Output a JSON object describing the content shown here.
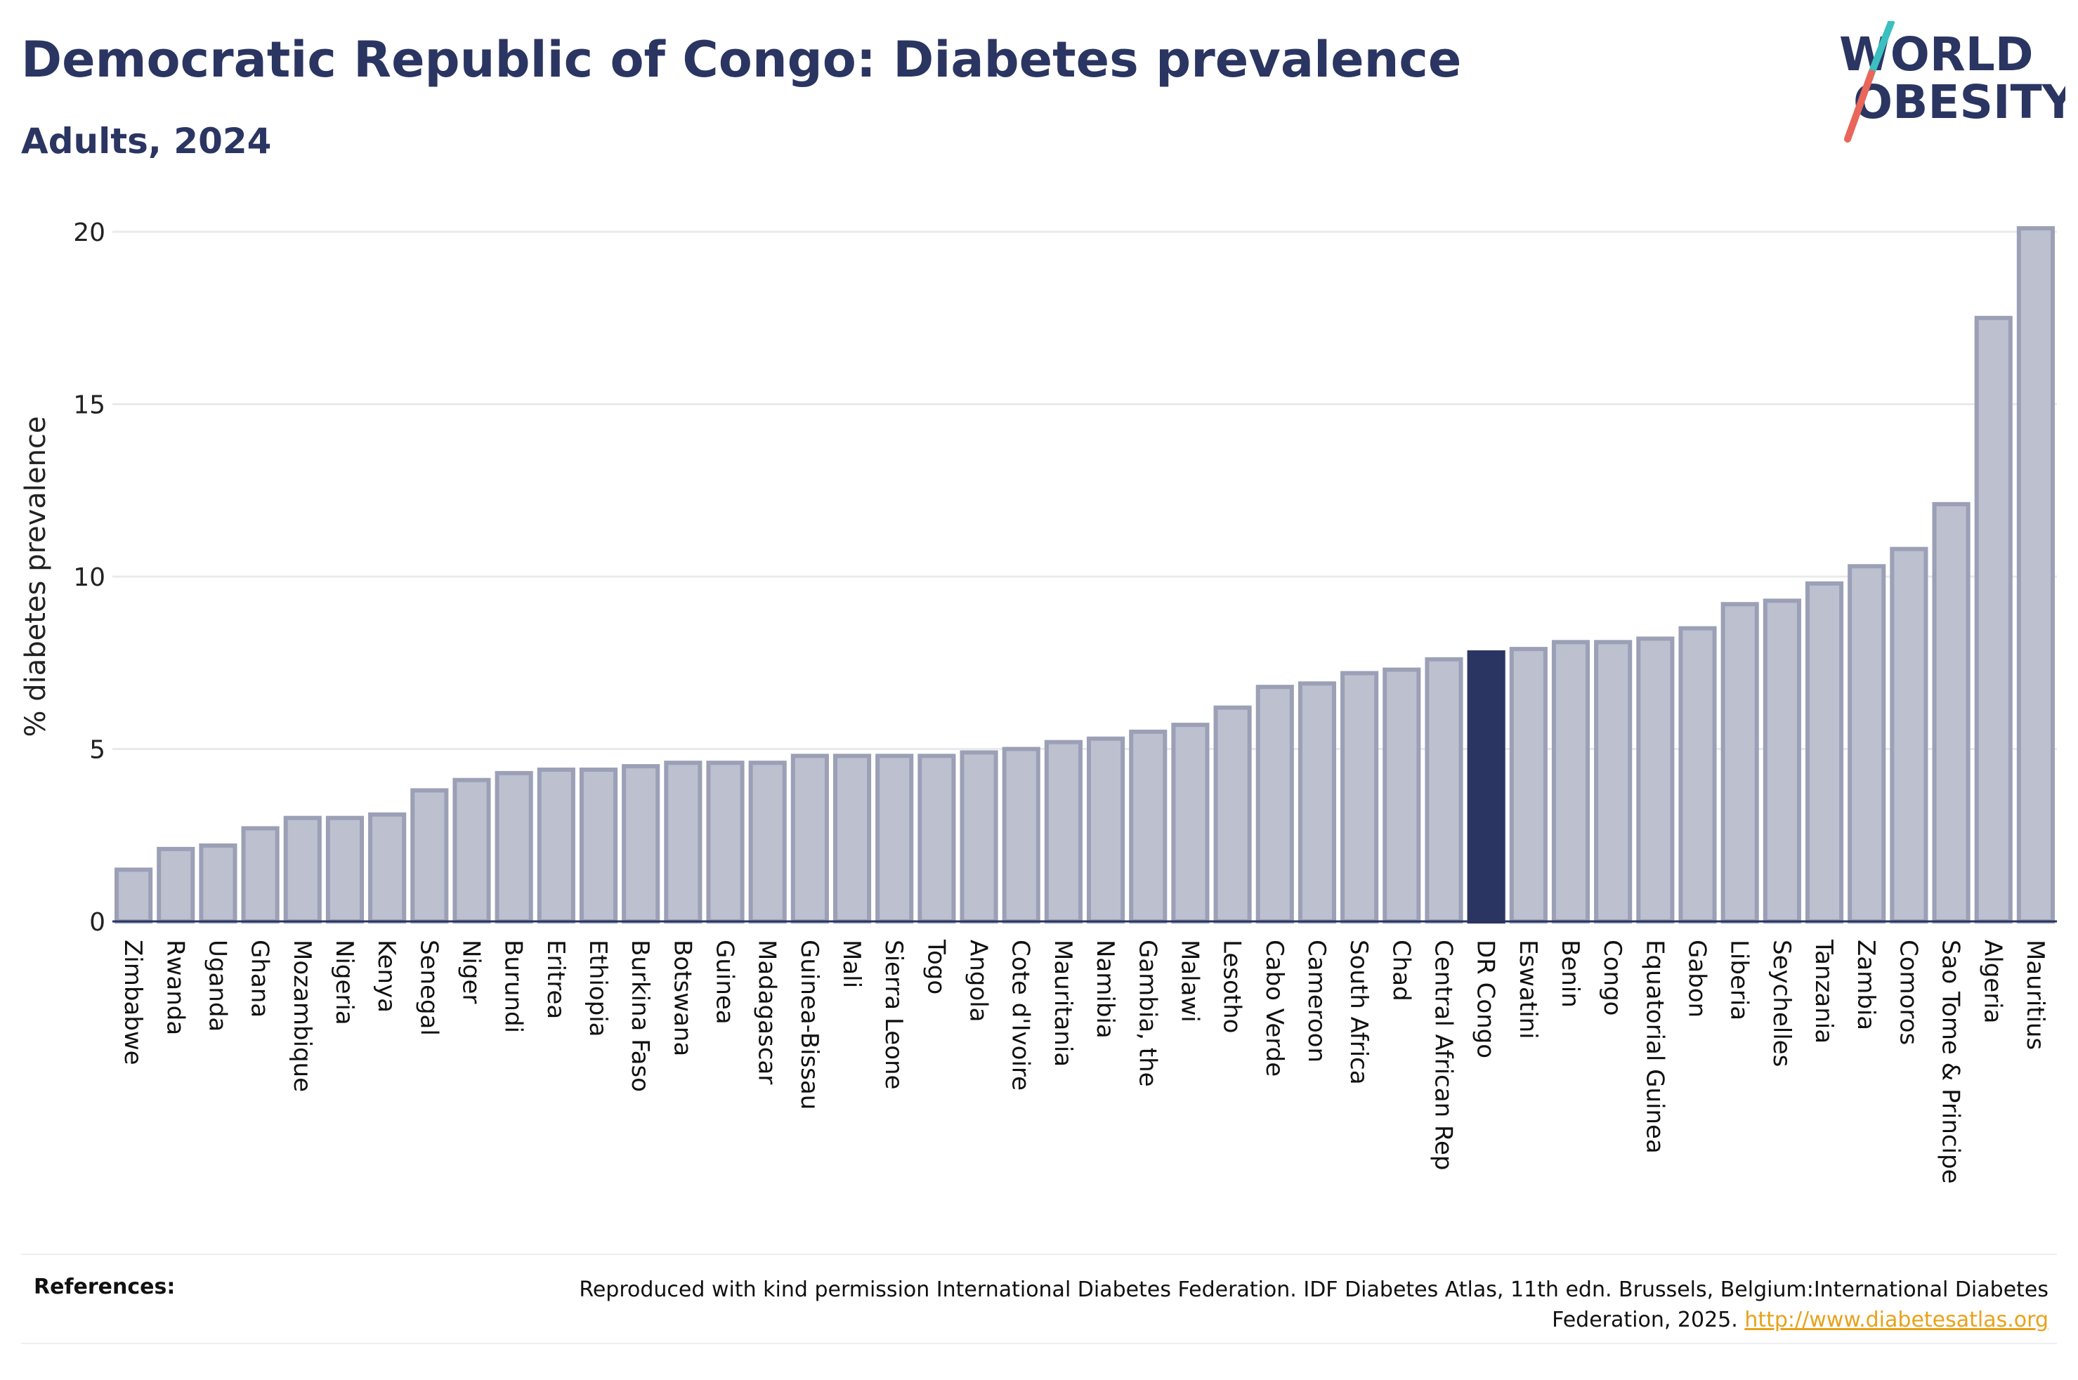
{
  "header": {
    "title": "Democratic Republic of Congo: Diabetes prevalence",
    "subtitle": "Adults, 2024"
  },
  "logo": {
    "line1": "WORLD",
    "line2": "OBESITY",
    "colors": {
      "text": "#2b3562",
      "slash_top": "#3bbfc0",
      "slash_bottom": "#e8665a"
    }
  },
  "chart_data": {
    "type": "bar",
    "title": "Democratic Republic of Congo: Diabetes prevalence",
    "subtitle": "Adults, 2024",
    "xlabel": "",
    "ylabel": "% diabetes prevalence",
    "ylim": [
      0,
      20
    ],
    "yticks": [
      0,
      5,
      10,
      15,
      20
    ],
    "grid": true,
    "highlight": "DR Congo",
    "colors": {
      "bar": "#bcc0cf",
      "bar_border": "#9ba0b6",
      "highlight": "#2b3562",
      "grid": "#e9e9ee",
      "axis": "#2b3562"
    },
    "categories": [
      "Zimbabwe",
      "Rwanda",
      "Uganda",
      "Ghana",
      "Mozambique",
      "Nigeria",
      "Kenya",
      "Senegal",
      "Niger",
      "Burundi",
      "Eritrea",
      "Ethiopia",
      "Burkina Faso",
      "Botswana",
      "Guinea",
      "Madagascar",
      "Guinea-Bissau",
      "Mali",
      "Sierra Leone",
      "Togo",
      "Angola",
      "Cote d'Ivoire",
      "Mauritania",
      "Namibia",
      "Gambia, the",
      "Malawi",
      "Lesotho",
      "Cabo Verde",
      "Cameroon",
      "South Africa",
      "Chad",
      "Central African Rep",
      "DR Congo",
      "Eswatini",
      "Benin",
      "Congo",
      "Equatorial Guinea",
      "Gabon",
      "Liberia",
      "Seychelles",
      "Tanzania",
      "Zambia",
      "Comoros",
      "Sao Tome & Principe",
      "Algeria",
      "Mauritius"
    ],
    "values": [
      1.5,
      2.1,
      2.2,
      2.7,
      3.0,
      3.0,
      3.1,
      3.8,
      4.1,
      4.3,
      4.4,
      4.4,
      4.5,
      4.6,
      4.6,
      4.6,
      4.8,
      4.8,
      4.8,
      4.8,
      4.9,
      5.0,
      5.2,
      5.3,
      5.5,
      5.7,
      6.2,
      6.8,
      6.9,
      7.2,
      7.3,
      7.6,
      7.8,
      7.9,
      8.1,
      8.1,
      8.2,
      8.5,
      9.2,
      9.3,
      9.8,
      10.3,
      10.8,
      12.1,
      17.5,
      20.1
    ]
  },
  "references": {
    "label": "References:",
    "text": "Reproduced with kind permission International Diabetes Federation. IDF Diabetes Atlas, 11th edn. Brussels, Belgium:International Diabetes Federation, 2025.",
    "link": "http://www.diabetesatlas.org"
  }
}
